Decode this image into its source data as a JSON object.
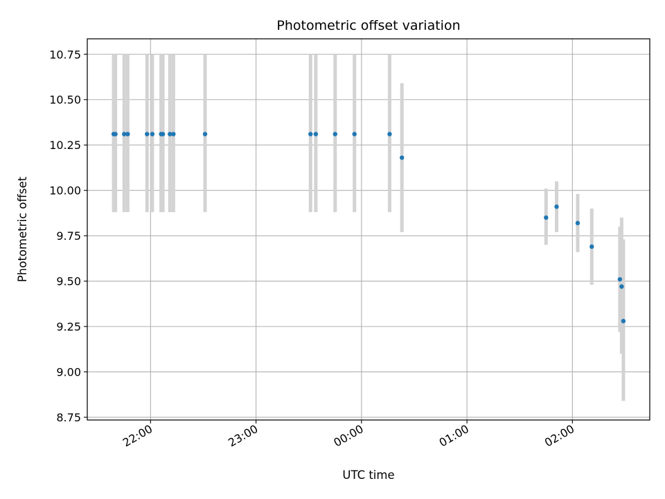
{
  "chart_data": {
    "type": "scatter",
    "title": "Photometric offset variation",
    "xlabel": "UTC time",
    "ylabel": "Photometric offset",
    "x_axis_kind": "time",
    "x_range": [
      "21:24",
      "02:44"
    ],
    "ylim": [
      8.735,
      10.835
    ],
    "x_ticks": [
      "22:00",
      "23:00",
      "00:00",
      "01:00",
      "02:00"
    ],
    "y_ticks": [
      "8.75",
      "9.00",
      "9.25",
      "9.50",
      "9.75",
      "10.00",
      "10.25",
      "10.50",
      "10.75"
    ],
    "grid": true,
    "point_color": "#1f77b4",
    "errorbar_color": "#d3d3d3",
    "series": [
      {
        "points": [
          {
            "time": "21:39",
            "y": 10.31,
            "err_low": 9.88,
            "err_high": 10.75
          },
          {
            "time": "21:40",
            "y": 10.31,
            "err_low": 9.88,
            "err_high": 10.75
          },
          {
            "time": "21:45",
            "y": 10.31,
            "err_low": 9.88,
            "err_high": 10.75
          },
          {
            "time": "21:47",
            "y": 10.31,
            "err_low": 9.88,
            "err_high": 10.75
          },
          {
            "time": "21:58",
            "y": 10.31,
            "err_low": 9.88,
            "err_high": 10.75
          },
          {
            "time": "22:01",
            "y": 10.31,
            "err_low": 9.88,
            "err_high": 10.75
          },
          {
            "time": "22:06",
            "y": 10.31,
            "err_low": 9.88,
            "err_high": 10.75
          },
          {
            "time": "22:07",
            "y": 10.31,
            "err_low": 9.88,
            "err_high": 10.75
          },
          {
            "time": "22:11",
            "y": 10.31,
            "err_low": 9.88,
            "err_high": 10.75
          },
          {
            "time": "22:13",
            "y": 10.31,
            "err_low": 9.88,
            "err_high": 10.75
          },
          {
            "time": "22:31",
            "y": 10.31,
            "err_low": 9.88,
            "err_high": 10.75
          },
          {
            "time": "23:31",
            "y": 10.31,
            "err_low": 9.88,
            "err_high": 10.75
          },
          {
            "time": "23:34",
            "y": 10.31,
            "err_low": 9.88,
            "err_high": 10.75
          },
          {
            "time": "23:45",
            "y": 10.31,
            "err_low": 9.88,
            "err_high": 10.75
          },
          {
            "time": "23:56",
            "y": 10.31,
            "err_low": 9.88,
            "err_high": 10.75
          },
          {
            "time": "00:16",
            "y": 10.31,
            "err_low": 9.88,
            "err_high": 10.75
          },
          {
            "time": "00:23",
            "y": 10.18,
            "err_low": 9.77,
            "err_high": 10.59
          },
          {
            "time": "01:45",
            "y": 9.85,
            "err_low": 9.7,
            "err_high": 10.01
          },
          {
            "time": "01:51",
            "y": 9.91,
            "err_low": 9.77,
            "err_high": 10.05
          },
          {
            "time": "02:03",
            "y": 9.82,
            "err_low": 9.66,
            "err_high": 9.98
          },
          {
            "time": "02:11",
            "y": 9.69,
            "err_low": 9.48,
            "err_high": 9.9
          },
          {
            "time": "02:27",
            "y": 9.51,
            "err_low": 9.22,
            "err_high": 9.8
          },
          {
            "time": "02:28",
            "y": 9.47,
            "err_low": 9.1,
            "err_high": 9.85
          },
          {
            "time": "02:29",
            "y": 9.28,
            "err_low": 8.84,
            "err_high": 9.73
          }
        ]
      }
    ]
  }
}
